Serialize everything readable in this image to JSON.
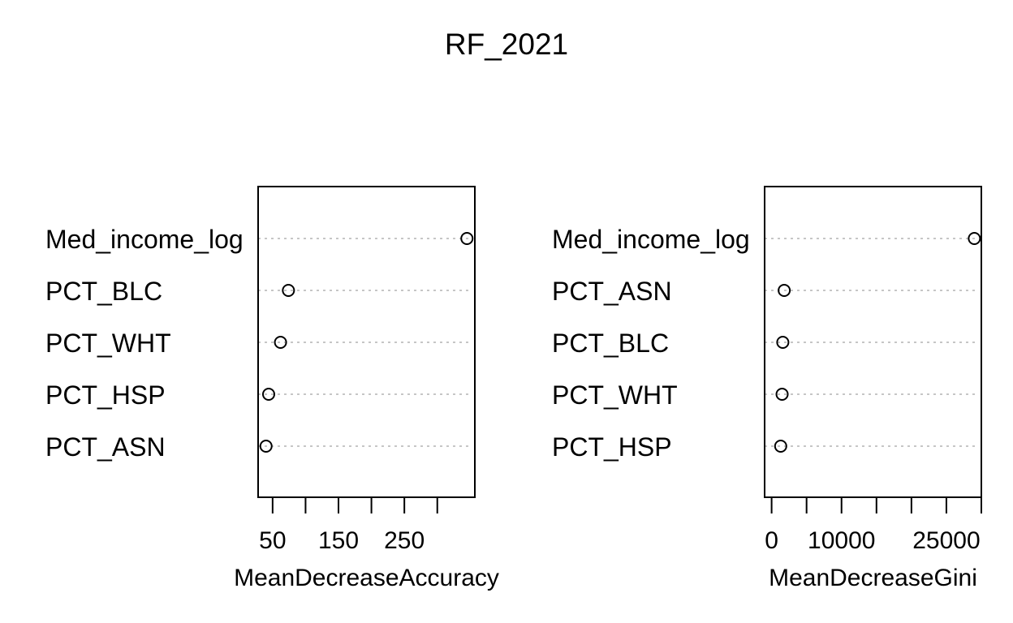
{
  "title": "RF_2021",
  "chart_data": [
    {
      "type": "scatter",
      "subtype": "dotchart",
      "title": "",
      "xlabel": "MeanDecreaseAccuracy",
      "ylabel": "",
      "xlim": [
        28,
        357
      ],
      "xticks": [
        50,
        100,
        150,
        200,
        250,
        300
      ],
      "xtick_labels": [
        "50",
        "150",
        "250"
      ],
      "categories": [
        "Med_income_log",
        "PCT_BLC",
        "PCT_WHT",
        "PCT_HSP",
        "PCT_ASN"
      ],
      "values": [
        345,
        74,
        62,
        44,
        40
      ],
      "grid": "dotted-horizontal",
      "legend": "none"
    },
    {
      "type": "scatter",
      "subtype": "dotchart",
      "title": "",
      "xlabel": "MeanDecreaseGini",
      "ylabel": "",
      "xlim": [
        -1000,
        30000
      ],
      "xticks": [
        0,
        5000,
        10000,
        15000,
        20000,
        25000,
        30000
      ],
      "xtick_labels": [
        "0",
        "10000",
        "25000"
      ],
      "categories": [
        "Med_income_log",
        "PCT_ASN",
        "PCT_BLC",
        "PCT_WHT",
        "PCT_HSP"
      ],
      "values": [
        29000,
        1800,
        1600,
        1500,
        1300
      ],
      "grid": "dotted-horizontal",
      "legend": "none"
    }
  ]
}
